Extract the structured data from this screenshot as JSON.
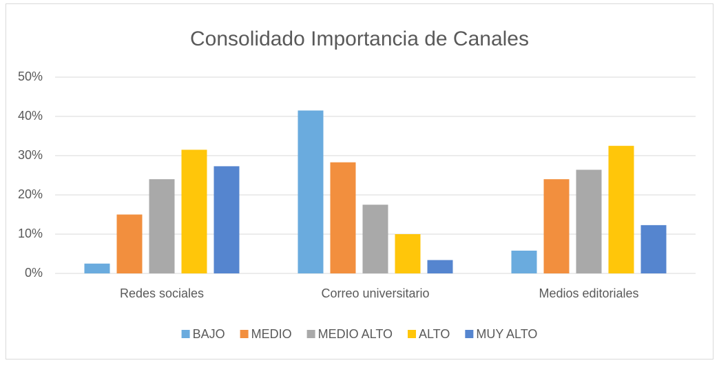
{
  "chart_data": {
    "type": "bar",
    "title": "Consolidado Importancia de Canales",
    "categories": [
      "Redes sociales",
      "Correo universitario",
      "Medios editoriales"
    ],
    "series": [
      {
        "name": "BAJO",
        "color": "#6aabde",
        "values": [
          2.5,
          41.5,
          5.8
        ]
      },
      {
        "name": "MEDIO",
        "color": "#f28f3e",
        "values": [
          15,
          28.3,
          24
        ]
      },
      {
        "name": "MEDIO ALTO",
        "color": "#a9a9a9",
        "values": [
          24,
          17.5,
          26.4
        ]
      },
      {
        "name": "ALTO",
        "color": "#ffc60a",
        "values": [
          31.5,
          10,
          32.5
        ]
      },
      {
        "name": "MUY ALTO",
        "color": "#5585cf",
        "values": [
          27.3,
          3.4,
          12.3
        ]
      }
    ],
    "ylim": [
      0,
      50
    ],
    "yticks": [
      {
        "value": 0,
        "label": "0%"
      },
      {
        "value": 10,
        "label": "10%"
      },
      {
        "value": 20,
        "label": "20%"
      },
      {
        "value": 30,
        "label": "30%"
      },
      {
        "value": 40,
        "label": "40%"
      },
      {
        "value": 50,
        "label": "50%"
      }
    ],
    "grid": true,
    "legend": "bottom"
  }
}
